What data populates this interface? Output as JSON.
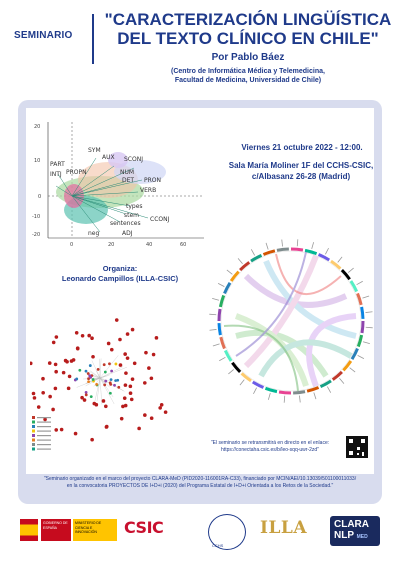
{
  "header": {
    "label": "SEMINARIO",
    "title": "\"CARACTERIZACIÓN LINGÜÍSTICA DEL TEXTO CLÍNICO EN CHILE\"",
    "author": "Por Pablo Báez",
    "affiliation_1": "(Centro de Informática Médica y Telemedicina,",
    "affiliation_2": "Facultad de Medicina, Universidad de Chile)"
  },
  "event": {
    "date": "Viernes 21 octubre 2022 - 12:00.",
    "place_1": "Sala María Moliner 1F del CCHS-CSIC,",
    "place_2": "c/Albasanz 26-28 (Madrid)"
  },
  "organizer": {
    "label": "Organiza:",
    "name": "Leonardo Campillos (ILLA-CSIC)"
  },
  "streaming": {
    "line_1": "\"El seminario se retransmitirá en directo en el enlace:",
    "link": "https://conectaha.csic.es/b/leo-sqq-uwr-2zd\""
  },
  "footnote": {
    "line_1": "\"Seminario organizado en el marco del proyecto CLARA-MeD (PID2020-116001RA-C33), financiado por MCIN/AEI/10.13039/501100011033/",
    "line_2": "en la convocatoria PROYECTOS DE I+D+i (2020) del Programa Estatal de I+D+i Orientada a los Retos de la Sociedad.\""
  },
  "scatter": {
    "y_ticks": [
      "20",
      "10",
      "0",
      "-10",
      "-20"
    ],
    "x_ticks": [
      "0",
      "20",
      "40",
      "60"
    ],
    "labels": [
      "SYM",
      "AUX",
      "SCONJ",
      "PART",
      "INTJ",
      "PROPN",
      "NUM",
      "DET",
      "PRON",
      "VERB",
      "types",
      "stem",
      "sentences",
      "CCONJ",
      "neg",
      "ADJ"
    ]
  },
  "logos": {
    "gob": "GOBIERNO DE ESPAÑA",
    "ministerio": "MINISTERIO DE CIENCIA E INNOVACIÓN",
    "csic": "CSIC",
    "cchs": "CCHS",
    "illa": "ILLA",
    "clara": "CLARA",
    "nlp": "NLP",
    "med": "MED"
  },
  "colors": {
    "primary": "#1f3a8a",
    "panel": "#d8dcee"
  }
}
